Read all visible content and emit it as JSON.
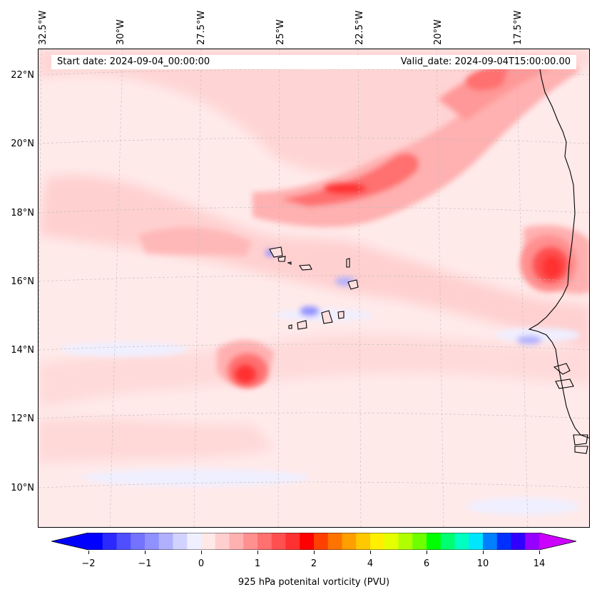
{
  "map": {
    "start_date": "Start date: 2024-09-04_00:00:00",
    "valid_date": "Valid_date: 2024-09-04T15:00:00.00",
    "lon_labels": [
      "32.5°W",
      "30°W",
      "27.5°W",
      "25°W",
      "22.5°W",
      "20°W",
      "17.5°W"
    ],
    "lat_labels": [
      "22°N",
      "20°N",
      "18°N",
      "16°N",
      "14°N",
      "12°N",
      "10°N"
    ],
    "coastline_color": "#000000",
    "gridline_color": "#bbbbbb"
  },
  "colorbar": {
    "label": "925 hPa potenital vorticity (PVU)",
    "ticks": [
      "−2",
      "−1",
      "0",
      "1",
      "2",
      "4",
      "6",
      "10",
      "14"
    ],
    "colors": [
      "#0000ff",
      "#2a2aff",
      "#4f4fff",
      "#7373ff",
      "#9090ff",
      "#b0b0ff",
      "#d2d2ff",
      "#efefff",
      "#ffe8e8",
      "#ffcfcf",
      "#ffb0b0",
      "#ff9090",
      "#ff7070",
      "#ff5050",
      "#ff3030",
      "#ff0000",
      "#ff4000",
      "#ff7300",
      "#ff9f00",
      "#ffc800",
      "#fff000",
      "#e6ff00",
      "#b0ff00",
      "#6eff00",
      "#00ff00",
      "#00ff70",
      "#00ffc0",
      "#00e6ff",
      "#0080ff",
      "#0030ff",
      "#3000ff",
      "#9600ff"
    ],
    "extend_low_color": "#0000ff",
    "extend_high_color": "#cc00ff"
  }
}
